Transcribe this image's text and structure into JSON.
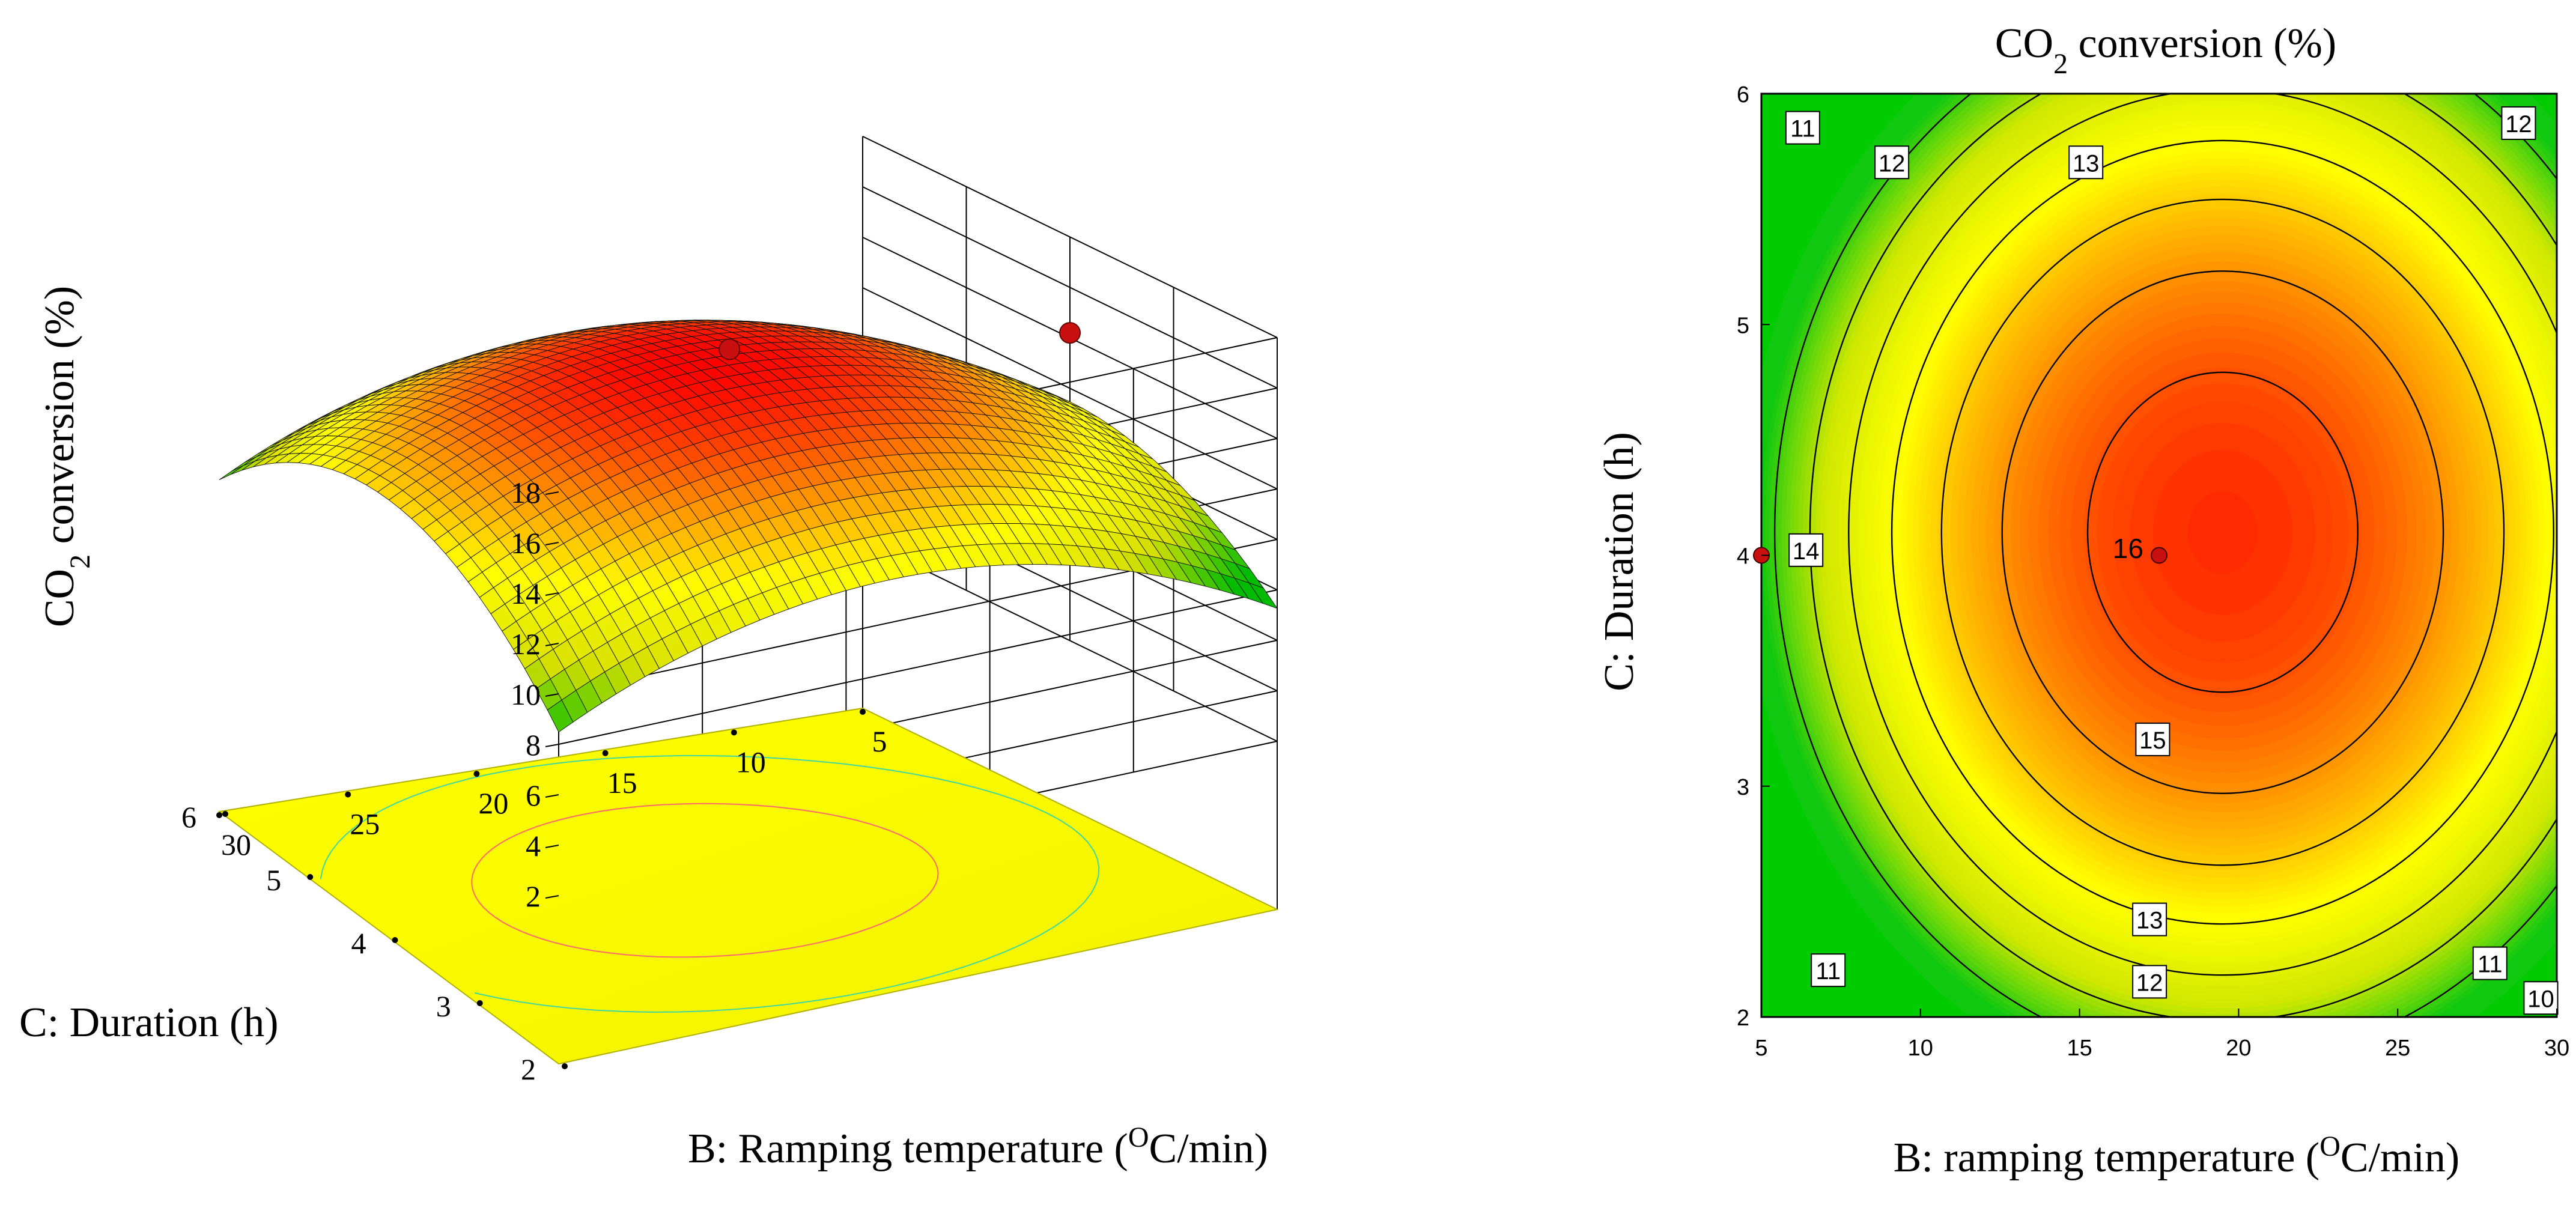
{
  "chart_data": [
    {
      "type": "surface3d",
      "zlabel_main": "CO",
      "zlabel_sub": "2",
      "zlabel_tail": " conversion (%)",
      "z_ticks": [
        "2",
        "4",
        "6",
        "8",
        "10",
        "12",
        "14",
        "16",
        "18"
      ],
      "z_range": [
        2,
        18
      ],
      "ylabel": "C: Duration (h)",
      "y_ticks": [
        "2",
        "3",
        "4",
        "5",
        "6"
      ],
      "y_range": [
        2,
        6
      ],
      "xlabel_main": "B: Ramping temperature (",
      "xlabel_sup": "O",
      "xlabel_tail": "C/min)",
      "x_ticks": [
        "5",
        "10",
        "15",
        "20",
        "25",
        "30"
      ],
      "x_range": [
        5,
        30
      ],
      "surface": {
        "peak_value": 15.9,
        "peak_B": 18.5,
        "peak_C": 4.0,
        "min_corner_value": 9.8,
        "colormap": [
          "#00bb00",
          "#d8e000",
          "#ffff00",
          "#ff8800",
          "#ff0000"
        ]
      },
      "design_points": [
        {
          "B": 17.5,
          "C": 4,
          "value": 16.1
        },
        {
          "B": 5,
          "C": 4,
          "value": 14.2
        }
      ]
    },
    {
      "type": "contour",
      "title_main": "CO",
      "title_sub": "2",
      "title_tail": " conversion (%)",
      "xlabel_main": "B: ramping temperature (",
      "xlabel_sup": "O",
      "xlabel_tail": "C/min)",
      "ylabel": "C: Duration (h)",
      "x_ticks": [
        "5",
        "10",
        "15",
        "20",
        "25",
        "30"
      ],
      "x_range": [
        5,
        30
      ],
      "y_ticks": [
        "2",
        "3",
        "4",
        "5",
        "6"
      ],
      "y_range": [
        2,
        6
      ],
      "contour_levels": [
        10,
        11,
        12,
        13,
        14,
        15,
        16
      ],
      "contour_labels": [
        {
          "text": "11",
          "B": 6.3,
          "C": 5.85
        },
        {
          "text": "12",
          "B": 9.1,
          "C": 5.7
        },
        {
          "text": "13",
          "B": 15.2,
          "C": 5.7
        },
        {
          "text": "12",
          "B": 28.8,
          "C": 5.87
        },
        {
          "text": "14",
          "B": 6.4,
          "C": 4.02
        },
        {
          "text": "16",
          "B": 16.6,
          "C": 4.03
        },
        {
          "text": "15",
          "B": 17.3,
          "C": 3.2
        },
        {
          "text": "13",
          "B": 17.2,
          "C": 2.42
        },
        {
          "text": "12",
          "B": 17.2,
          "C": 2.15
        },
        {
          "text": "11",
          "B": 7.1,
          "C": 2.2
        },
        {
          "text": "11",
          "B": 27.9,
          "C": 2.23
        },
        {
          "text": "10",
          "B": 29.5,
          "C": 2.08
        }
      ],
      "design_points": [
        {
          "B": 17.5,
          "C": 4
        },
        {
          "B": 5,
          "C": 4
        }
      ]
    }
  ]
}
